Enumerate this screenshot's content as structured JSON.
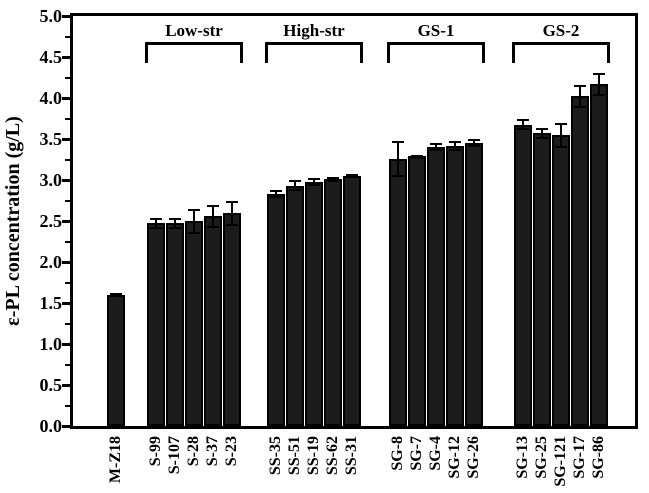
{
  "figure": {
    "background": "#ffffff",
    "frame_color": "#000000",
    "bar_fill_color": "#1c1c1c",
    "error_bar_color": "#000000"
  },
  "chart_data": {
    "type": "bar",
    "title": "",
    "ylabel": "ε-PL concentration (g/L)",
    "xlabel": "",
    "ylim": [
      0.0,
      5.0
    ],
    "ytick_labels": [
      "0.0",
      "0.5",
      "1.0",
      "1.5",
      "2.0",
      "2.5",
      "3.0",
      "3.5",
      "4.0",
      "4.5",
      "5.0"
    ],
    "minor_tick_interval": 0.25,
    "grid": false,
    "legend": null,
    "error_bars": true,
    "groups": [
      {
        "label": null,
        "bars": [
          {
            "name": "M-Z18",
            "value": 1.6,
            "error": 0.02
          }
        ]
      },
      {
        "label": "Low-str",
        "bars": [
          {
            "name": "S-99",
            "value": 2.47,
            "error": 0.07
          },
          {
            "name": "S-107",
            "value": 2.47,
            "error": 0.07
          },
          {
            "name": "S-28",
            "value": 2.5,
            "error": 0.15
          },
          {
            "name": "S-37",
            "value": 2.56,
            "error": 0.14
          },
          {
            "name": "S-23",
            "value": 2.6,
            "error": 0.15
          }
        ]
      },
      {
        "label": "High-str",
        "bars": [
          {
            "name": "SS-35",
            "value": 2.83,
            "error": 0.05
          },
          {
            "name": "SS-51",
            "value": 2.93,
            "error": 0.07
          },
          {
            "name": "SS-19",
            "value": 2.98,
            "error": 0.05
          },
          {
            "name": "SS-62",
            "value": 3.01,
            "error": 0.03
          },
          {
            "name": "SS-31",
            "value": 3.05,
            "error": 0.02
          }
        ]
      },
      {
        "label": "GS-1",
        "bars": [
          {
            "name": "SG-8",
            "value": 3.25,
            "error": 0.22
          },
          {
            "name": "SG-7",
            "value": 3.29,
            "error": 0.02
          },
          {
            "name": "SG-4",
            "value": 3.4,
            "error": 0.05
          },
          {
            "name": "SG-12",
            "value": 3.42,
            "error": 0.06
          },
          {
            "name": "SG-26",
            "value": 3.45,
            "error": 0.05
          }
        ]
      },
      {
        "label": "GS-2",
        "bars": [
          {
            "name": "SG-13",
            "value": 3.67,
            "error": 0.07
          },
          {
            "name": "SG-25",
            "value": 3.57,
            "error": 0.07
          },
          {
            "name": "SG-121",
            "value": 3.55,
            "error": 0.15
          },
          {
            "name": "SG-17",
            "value": 4.02,
            "error": 0.14
          },
          {
            "name": "SG-86",
            "value": 4.17,
            "error": 0.14
          }
        ]
      }
    ]
  }
}
